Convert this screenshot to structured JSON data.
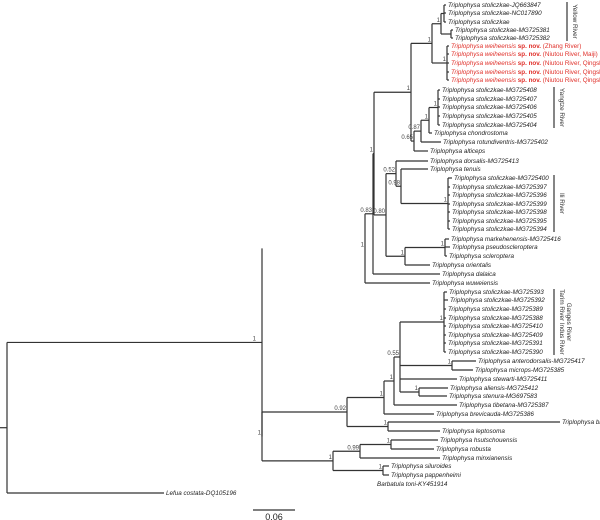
{
  "figure": {
    "type": "phylogenetic-tree",
    "scale_bar": {
      "value": "0.06"
    },
    "highlight_color": "#e0302a",
    "branch_color": "#333333"
  },
  "taxa": [
    {
      "name": "Triplophysa stoliczkae-JQ663847"
    },
    {
      "name": "Triplophysa stoliczkae-NC017890"
    },
    {
      "name": "Triplophysa stoliczkae"
    },
    {
      "name": "Triplophysa stoliczkae-MG725381"
    },
    {
      "name": "Triplophysa stoliczkae-MG725382"
    },
    {
      "name": "Triplophysa weiheensis",
      "bold": "sp. nov.",
      "note": "(Zhang River)",
      "highlight": true
    },
    {
      "name": "Triplophysa weiheensis",
      "bold": "sp. nov.",
      "note": "(Niutou River, Maiji)",
      "highlight": true
    },
    {
      "name": "Triplophysa weiheensis",
      "bold": "sp. nov.",
      "note": "(Niutou River, Qingshui)",
      "highlight": true
    },
    {
      "name": "Triplophysa weiheensis",
      "bold": "sp. nov.",
      "note": "(Niutou River, Qingshui)",
      "highlight": true
    },
    {
      "name": "Triplophysa weiheensis",
      "bold": "sp. nov.",
      "note": "(Niutou River, Qingshui)",
      "highlight": true
    },
    {
      "name": "Triplophysa stoliczkae-MG725408"
    },
    {
      "name": "Triplophysa stoliczkae-MG725407"
    },
    {
      "name": "Triplophysa stoliczkae-MG725406"
    },
    {
      "name": "Triplophysa stoliczkae-MG725405"
    },
    {
      "name": "Triplophysa stoliczkae-MG725404"
    },
    {
      "name": "Triplophysa chondrostoma"
    },
    {
      "name": "Triplophysa rotundiventris-MG725402"
    },
    {
      "name": "Triplophysa alticeps"
    },
    {
      "name": "Triplophysa dorsalis-MG725413"
    },
    {
      "name": "Triplophysa tenuis"
    },
    {
      "name": "Triplophysa stoliczkae-MG725400"
    },
    {
      "name": "Triplophysa stoliczkae-MG725397"
    },
    {
      "name": "Triplophysa stoliczkae-MG725396"
    },
    {
      "name": "Triplophysa stoliczkae-MG725399"
    },
    {
      "name": "Triplophysa stoliczkae-MG725398"
    },
    {
      "name": "Triplophysa stoliczkae-MG725395"
    },
    {
      "name": "Triplophysa stoliczkae-MG725394"
    },
    {
      "name": "Triplophysa markehenensis-MG725416"
    },
    {
      "name": "Triplophysa pseudoscleroptera"
    },
    {
      "name": "Triplophysa scleroptera"
    },
    {
      "name": "Triplophysa orientalis"
    },
    {
      "name": "Triplophysa dalaica"
    },
    {
      "name": "Triplophysa wuweiensis"
    },
    {
      "name": "Triplophysa stoliczkae-MG725393"
    },
    {
      "name": "Triplophysa stoliczkae-MG725392"
    },
    {
      "name": "Triplophysa stoliczkae-MG725389"
    },
    {
      "name": "Triplophysa stoliczkae-MG725388"
    },
    {
      "name": "Triplophysa stoliczkae-MG725410"
    },
    {
      "name": "Triplophysa stoliczkae-MG725409"
    },
    {
      "name": "Triplophysa stoliczkae-MG725391"
    },
    {
      "name": "Triplophysa stoliczkae-MG725390"
    },
    {
      "name": "Triplophysa anterodorsalis-MG725417"
    },
    {
      "name": "Triplophysa microps-MG725385"
    },
    {
      "name": "Triplophysa stewarti-MG725411"
    },
    {
      "name": "Triplophysa aliensis-MG725412"
    },
    {
      "name": "Triplophysa stenura-MG697583"
    },
    {
      "name": "Triplophysa tibetana-MG725387"
    },
    {
      "name": "Triplophysa brevicauda-MG725386"
    },
    {
      "name": "Triplophysa bleekeri"
    },
    {
      "name": "Triplophysa leptosoma"
    },
    {
      "name": "Triplophysa hsutschouensis"
    },
    {
      "name": "Triplophysa robusta"
    },
    {
      "name": "Triplophysa minxianensis"
    },
    {
      "name": "Triplophysa siluroides"
    },
    {
      "name": "Triplophysa pappenheimi"
    },
    {
      "name": "Barbatula toni-KY451914"
    },
    {
      "name": "Lefua costata-DQ105196"
    }
  ],
  "support_values": [
    "1",
    "1",
    "1",
    "1",
    "1",
    "0.87",
    "1",
    "0.65",
    "1",
    "0.52",
    "0.98",
    "1",
    "0.83",
    "0.80",
    "1",
    "0.57",
    "1",
    "1",
    "1",
    "1",
    "0.55",
    "1",
    "1",
    "1",
    "0.92",
    "1",
    "1",
    "0.99",
    "1",
    "1",
    "1"
  ],
  "clade_labels": [
    {
      "label": "Yellow River"
    },
    {
      "label": "Yangtze River"
    },
    {
      "label": "Ili River"
    },
    {
      "label": "Tarim River  Indus River"
    },
    {
      "label": "Ganges River"
    }
  ]
}
